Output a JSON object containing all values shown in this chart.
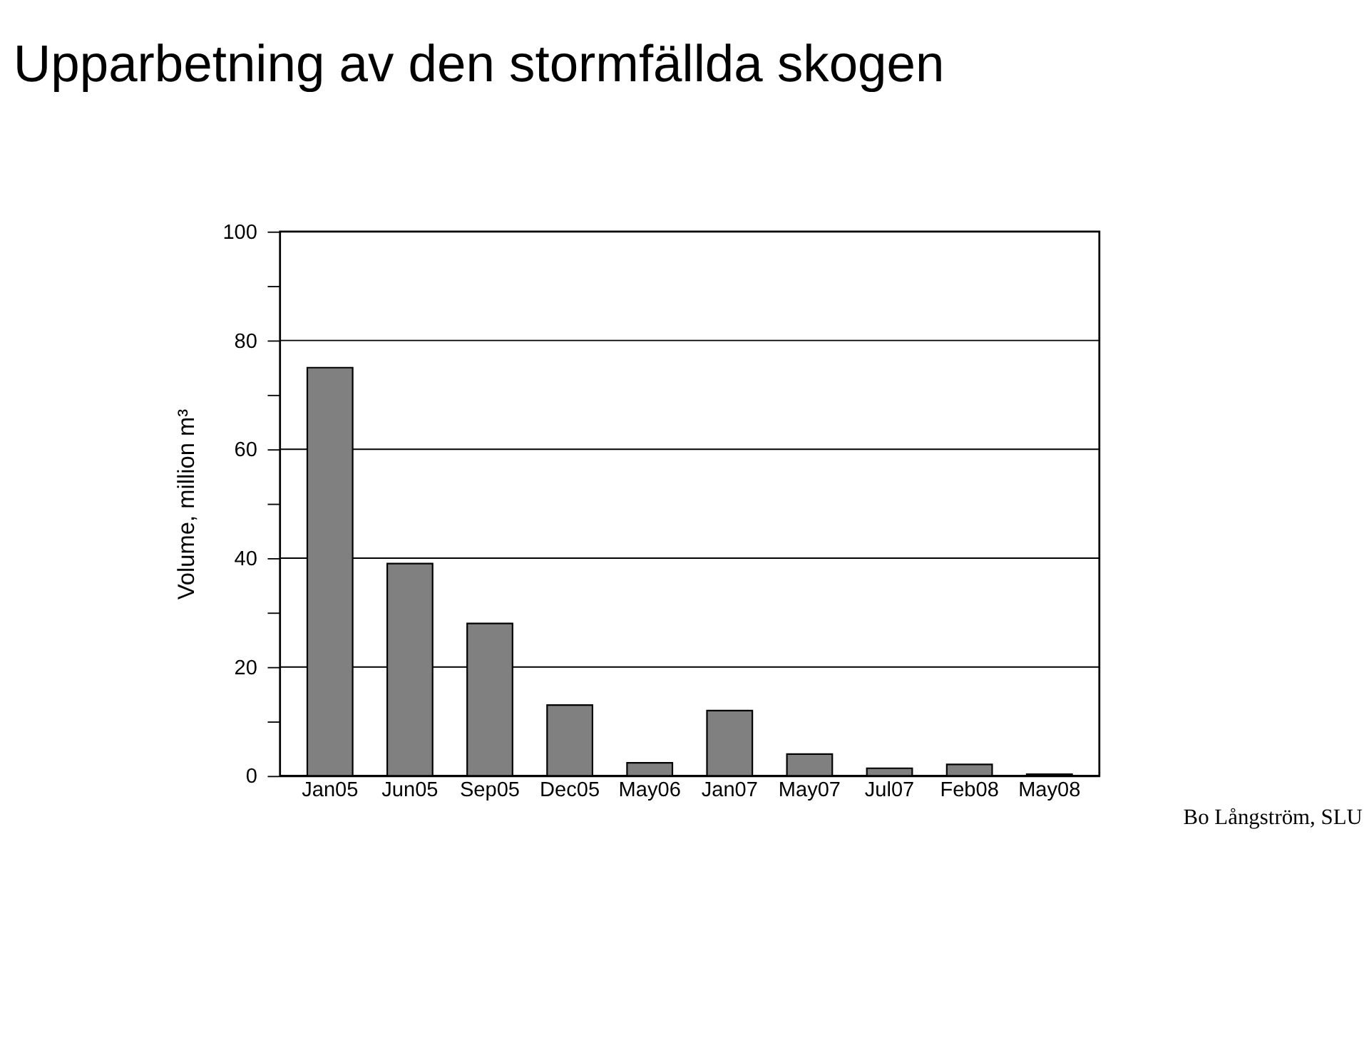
{
  "chart_data": {
    "type": "bar",
    "title": "Upparbetning av den stormfällda skogen",
    "ylabel": "Volume, million m³",
    "categories": [
      "Jan05",
      "Jun05",
      "Sep05",
      "Dec05",
      "May06",
      "Jan07",
      "May07",
      "Jul07",
      "Feb08",
      "May08"
    ],
    "values": [
      75,
      39,
      28,
      13,
      2.4,
      12,
      4,
      1.4,
      2.1,
      0.3
    ],
    "color": "#808080",
    "ylim": [
      0,
      100
    ],
    "yticks": [
      0,
      {
        "value": 10,
        "label": null
      },
      20,
      {
        "value": 30,
        "label": null
      },
      40,
      {
        "value": 50,
        "label": null
      },
      60,
      {
        "value": 70,
        "label": null
      },
      80,
      {
        "value": 90,
        "label": null
      },
      100
    ],
    "grid": "y",
    "annotations": [
      "Bo Långström, SLU"
    ]
  }
}
